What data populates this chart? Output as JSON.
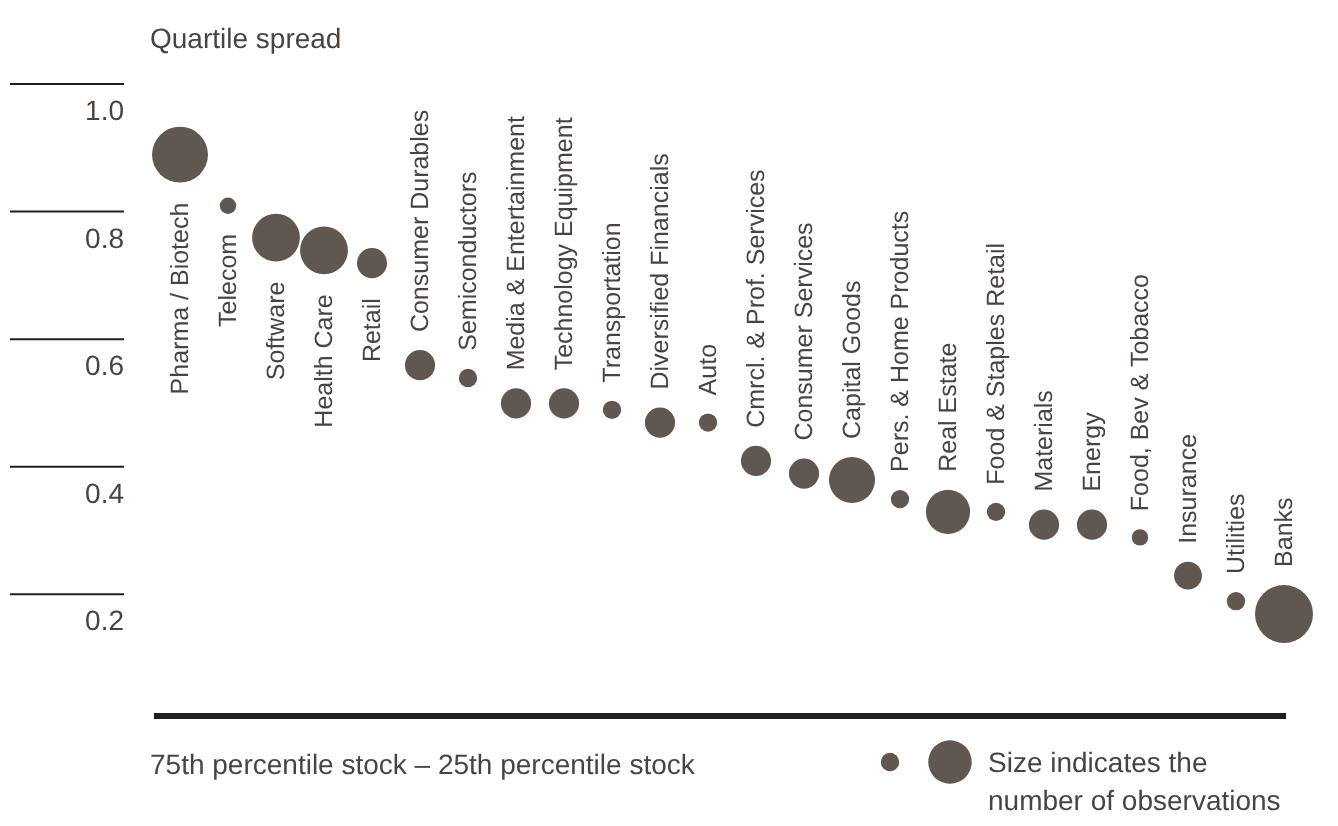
{
  "chart_data": {
    "type": "bubble",
    "ylabel": "Quartile spread",
    "xlabel": "75th percentile stock – 25th percentile stock",
    "annotations": [
      "Size indicates the number of observations"
    ],
    "categories": [
      "Pharma / Biotech",
      "Telecom",
      "Software",
      "Health Care",
      "Retail",
      "Consumer Durables",
      "Semiconductors",
      "Media & Entertainment",
      "Technology Equipment",
      "Transportation",
      "Diversified Financials",
      "Auto",
      "Cmrcl. & Prof. Services",
      "Consumer Services",
      "Capital Goods",
      "Pers. & Home Products",
      "Real Estate",
      "Food & Staples Retail",
      "Materials",
      "Energy",
      "Food, Bev & Tobacco",
      "Insurance",
      "Utilities",
      "Banks"
    ],
    "values": [
      0.93,
      0.85,
      0.8,
      0.78,
      0.76,
      0.6,
      0.58,
      0.54,
      0.54,
      0.53,
      0.51,
      0.51,
      0.45,
      0.43,
      0.42,
      0.39,
      0.37,
      0.37,
      0.35,
      0.35,
      0.33,
      0.27,
      0.23,
      0.21
    ],
    "sizes": [
      0.93,
      0.08,
      0.68,
      0.68,
      0.27,
      0.27,
      0.1,
      0.27,
      0.27,
      0.1,
      0.27,
      0.1,
      0.27,
      0.27,
      0.63,
      0.1,
      0.58,
      0.1,
      0.27,
      0.27,
      0.08,
      0.23,
      0.1,
      1
    ],
    "color": "#5f5750",
    "ylim": [
      0.05,
      1.0
    ],
    "yticks": [
      {
        "value": 0.2,
        "label": "0.2"
      },
      {
        "value": 0.4,
        "label": "0.4"
      },
      {
        "value": 0.6,
        "label": "0.6"
      },
      {
        "value": 0.8,
        "label": "0.8"
      },
      {
        "value": 1.0,
        "label": "1.0"
      }
    ],
    "grid": false
  }
}
